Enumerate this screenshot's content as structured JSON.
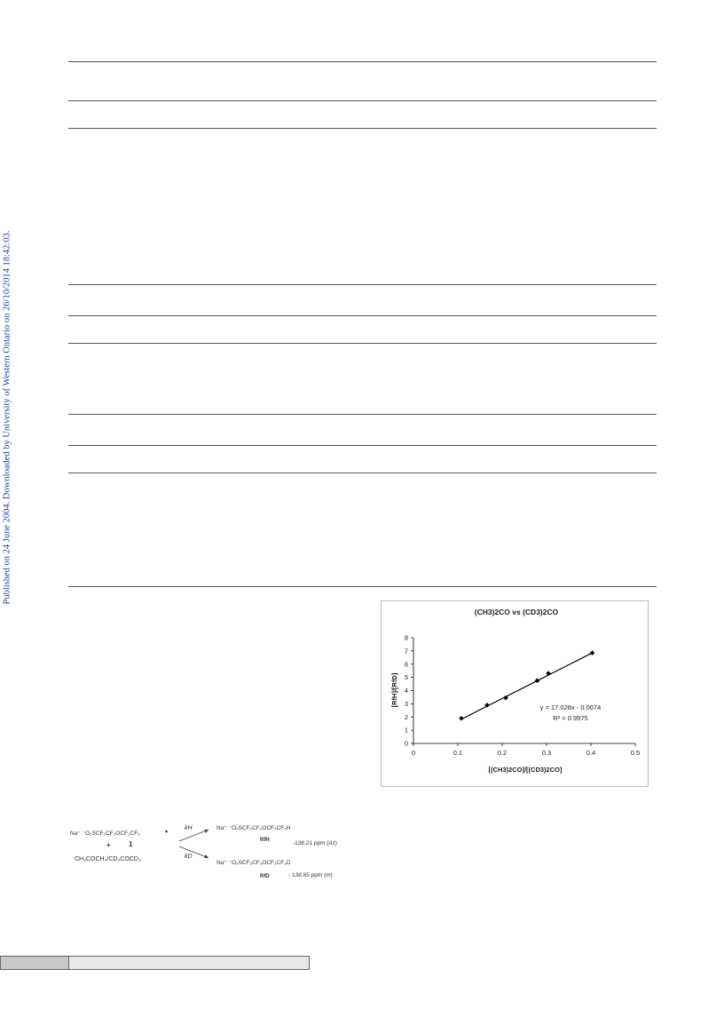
{
  "sidebar": {
    "text": "Published on 24 June 2004. Downloaded by University of Western Ontario on 26/10/2014 18:42:03."
  },
  "chart_data": {
    "type": "scatter",
    "title": "(CH3)2CO vs (CD3)2CO",
    "xlabel": "[(CH3)2CO]/[(CD3)2CO]",
    "ylabel": "[RfH]/[RfD]",
    "xlim": [
      0,
      0.5
    ],
    "ylim": [
      0,
      8
    ],
    "xticks": [
      "0",
      "0.1",
      "0.2",
      "0.3",
      "0.4",
      "0.5"
    ],
    "yticks": [
      "0",
      "1",
      "2",
      "3",
      "4",
      "5",
      "6",
      "7",
      "8"
    ],
    "points": [
      {
        "x": 0.108,
        "y": 1.9
      },
      {
        "x": 0.166,
        "y": 2.9
      },
      {
        "x": 0.208,
        "y": 3.45
      },
      {
        "x": 0.279,
        "y": 4.75
      },
      {
        "x": 0.304,
        "y": 5.3
      },
      {
        "x": 0.403,
        "y": 6.85
      }
    ],
    "trendline": {
      "slope": 17.028,
      "intercept": -0.0074
    },
    "equation": "y = 17.028x - 0.0074",
    "r2": "R² = 0.9975",
    "grid": false,
    "legend": "none"
  },
  "scheme": {
    "reactant": "Na⁺ ⁻O₂SCF₂CF₂OCF₂CF₂",
    "radical_dot": "•",
    "plus": "+",
    "label_1": "1",
    "solvent": "CH₃COCH₃/CD₃COCD₃",
    "kH": "kH",
    "kD": "kD",
    "product_h": "Na⁺ ⁻O₂SCF₂CF₂OCF₂CF₂H",
    "product_h_label": "RfH",
    "product_h_shift": "-138.21 ppm (d,t)",
    "product_d": "Na⁺ ⁻O₂SCF₂CF₂OCF₂CF₂D",
    "product_d_label": "RfD",
    "product_d_shift": "- 138.85 ppm (m)"
  },
  "colors": {
    "sidebar_text": "#2a3aa8",
    "rule": "#555555",
    "chart_line": "#000000"
  }
}
